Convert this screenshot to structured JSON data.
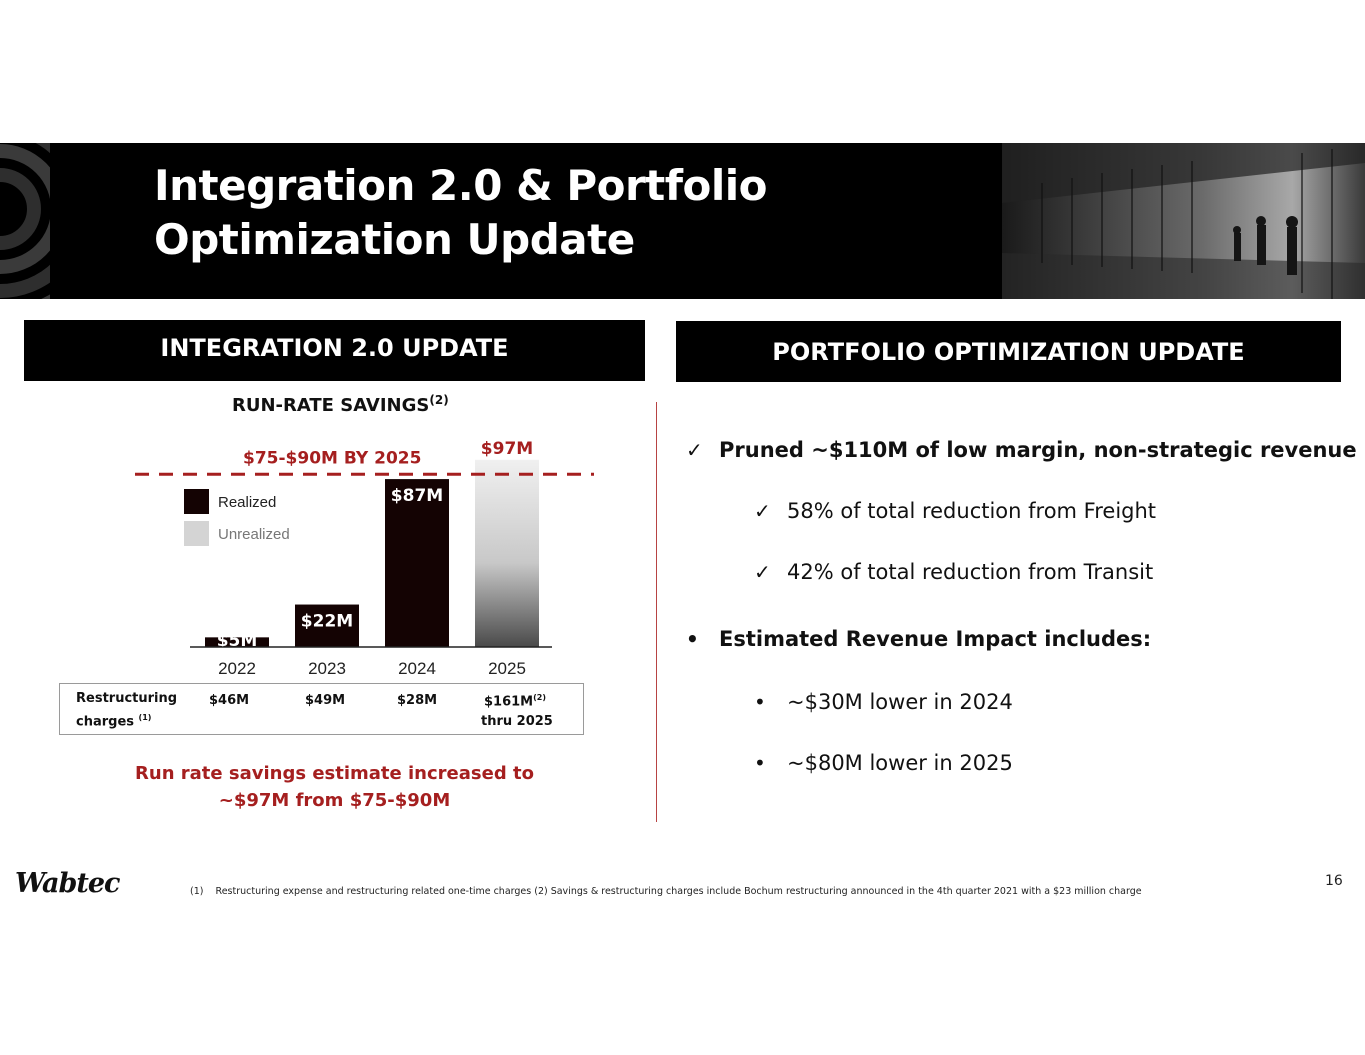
{
  "slide": {
    "title_line1": "Integration 2.0 & Portfolio",
    "title_line2": "Optimization Update",
    "page_number": "16",
    "brand": "Wabtec",
    "footnote": "(1)    Restructuring expense and restructuring related one-time charges  (2)  Savings & restructuring charges include Bochum restructuring announced in the 4th quarter 2021 with a $23 million charge"
  },
  "left": {
    "header": "INTEGRATION 2.0 UPDATE",
    "chart_title": "RUN-RATE SAVINGS",
    "chart_title_sup": "(2)",
    "estimate_line1": "Run rate savings estimate increased to",
    "estimate_line2": "~$97M from $75-$90M",
    "restructuring": {
      "label_line1": "Restructuring",
      "label_line2": "charges",
      "label_sup": "(1)",
      "values": [
        "$46M",
        "$49M",
        "$28M",
        "$161M"
      ],
      "last_sup": "(2)",
      "last_note": "thru 2025"
    }
  },
  "chart_data": {
    "type": "bar",
    "categories": [
      "2022",
      "2023",
      "2024",
      "2025"
    ],
    "values": [
      5,
      22,
      87,
      97
    ],
    "labels": [
      "$5M",
      "$22M",
      "$87M",
      "$97M"
    ],
    "status": [
      "Realized",
      "Realized",
      "Realized",
      "Unrealized"
    ],
    "title": "RUN-RATE SAVINGS(2)",
    "legend": [
      {
        "name": "Realized",
        "color": "#140303"
      },
      {
        "name": "Unrealized",
        "color": "#d4d4d4"
      }
    ],
    "legend_position": "top-left",
    "target": {
      "label": "$75-$90M BY 2025",
      "value": 90
    },
    "ylim": [
      0,
      100
    ],
    "colors": {
      "realized": "#140303",
      "target": "#a51f1f",
      "unrealized_top": "#f0f0f0",
      "unrealized_bottom": "#4a4a4a"
    }
  },
  "right": {
    "header": "PORTFOLIO OPTIMIZATION UPDATE",
    "check_glyph": "✓",
    "dot_glyph": "•",
    "items": [
      {
        "text": "Pruned  ~$110M of low margin, non-strategic revenue"
      },
      {
        "text": "58% of total reduction from Freight"
      },
      {
        "text": "42% of total reduction from Transit"
      },
      {
        "text": "Estimated Revenue Impact includes:"
      },
      {
        "text": "~$30M lower in 2024"
      },
      {
        "text": "~$80M lower in 2025"
      }
    ]
  }
}
